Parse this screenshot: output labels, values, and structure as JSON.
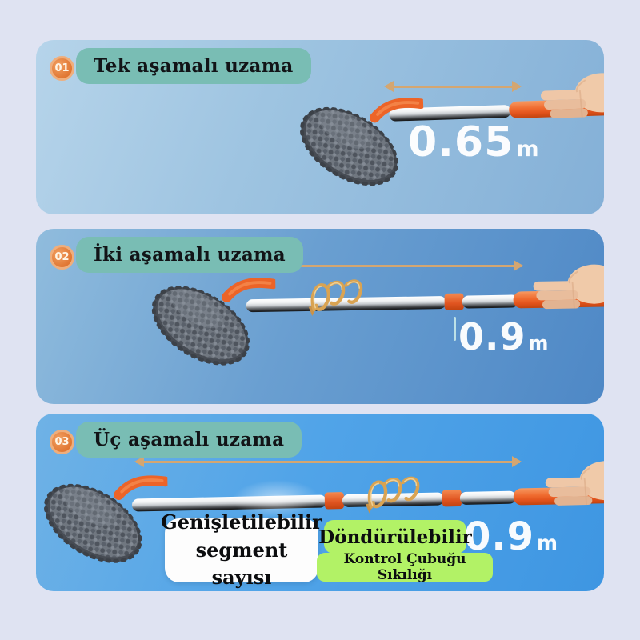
{
  "panels": [
    {
      "badge": "01",
      "title": "Tek aşamalı uzama",
      "measurement": {
        "value": "0.65",
        "unit": "m"
      }
    },
    {
      "badge": "02",
      "title": "İki aşamalı uzama",
      "measurement": {
        "value": "0.9",
        "unit": "m"
      }
    },
    {
      "badge": "03",
      "title": "Üç aşamalı uzama",
      "measurement": {
        "value": "0.9",
        "unit": "m"
      }
    }
  ],
  "callouts": {
    "expandable": {
      "line1": "Genişletilebilir",
      "line2": "segment sayısı"
    },
    "rotatable": "Döndürülebilir",
    "tightness": "Kontrol Çubuğu Sıkılığı"
  },
  "colors": {
    "background": "#dfe3f2",
    "badge_orange": "#e07632",
    "label_teal": "#79bdb4",
    "callout_green": "#b2f266",
    "callout_white": "#fdfdfd",
    "arrow_tan": "#d4a671",
    "handle_orange": "#ee6a2e",
    "measurement_text": "#ffffff"
  }
}
